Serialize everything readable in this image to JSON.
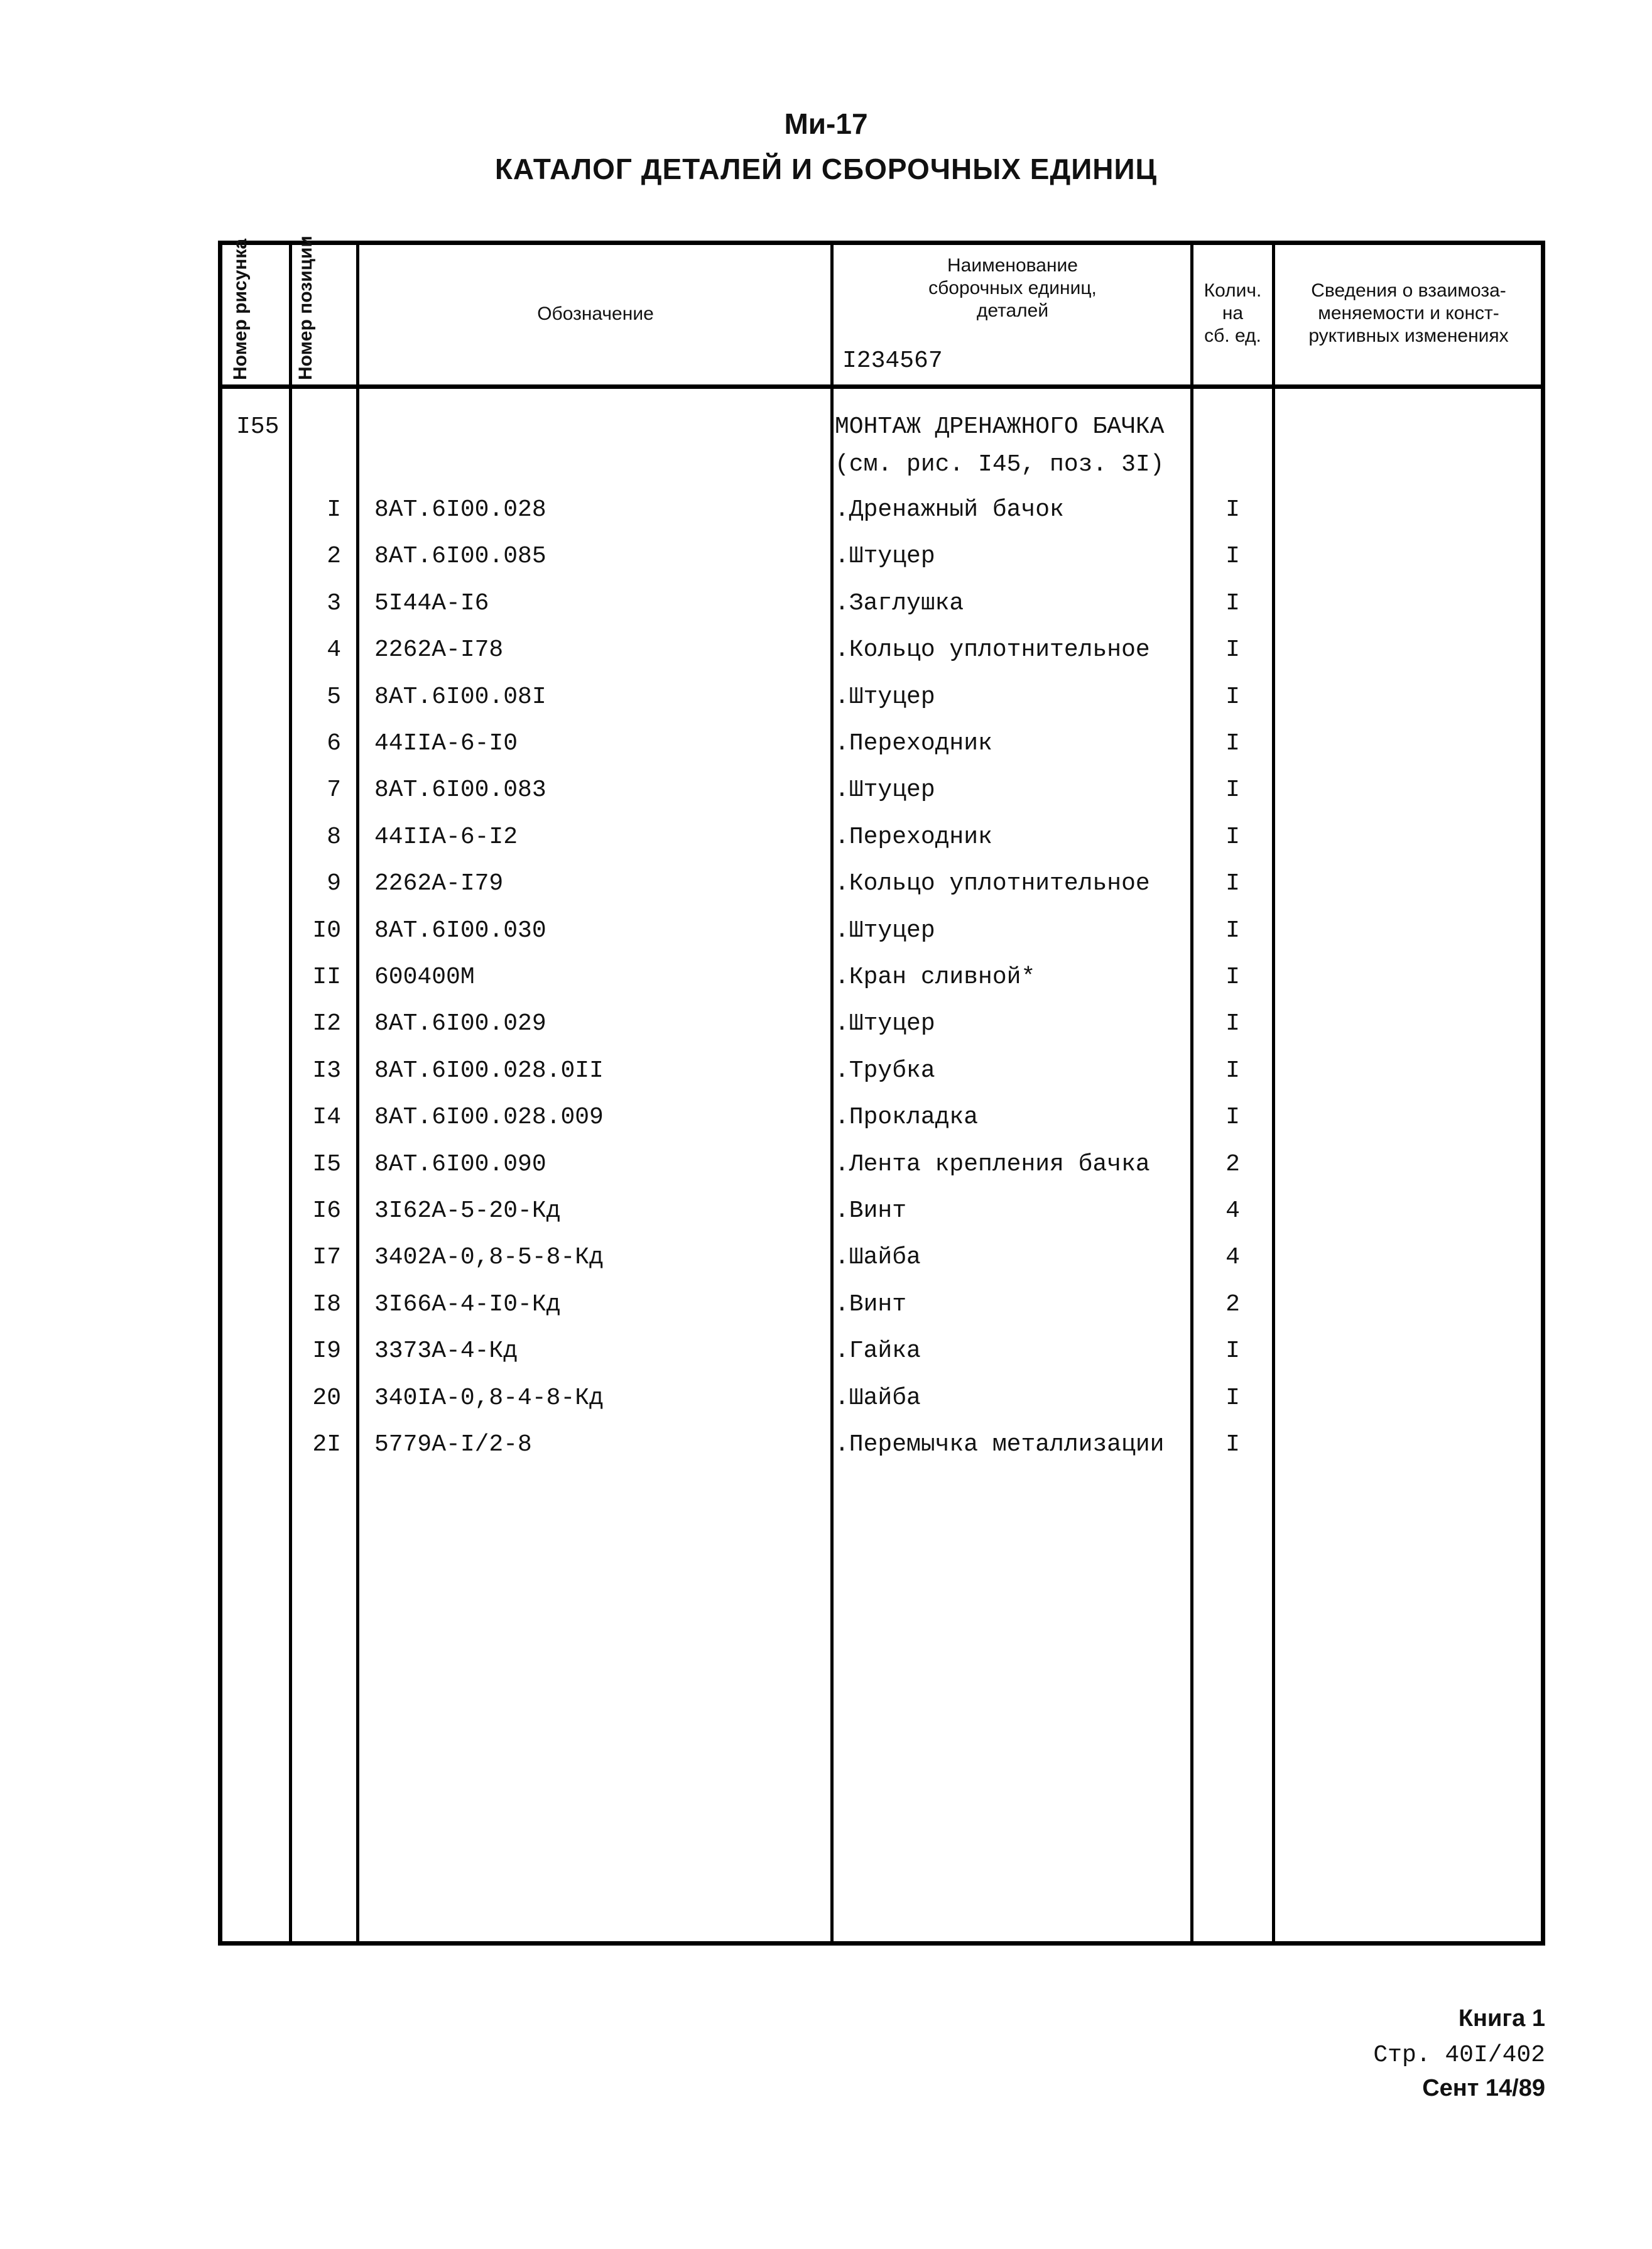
{
  "header": {
    "model": "Ми-17",
    "title": "КАТАЛОГ ДЕТАЛЕЙ И СБОРОЧНЫХ ЕДИНИЦ"
  },
  "table": {
    "columns": {
      "figure_number": "Номер рисунка",
      "position_number": "Номер позиции",
      "designation": "Обозначение",
      "name_lines": [
        "Наименование",
        "сборочных единиц,",
        "деталей"
      ],
      "name_code": "I234567",
      "qty_lines": [
        "Колич.",
        "на",
        "сб. ед."
      ],
      "info_lines": [
        "Сведения о взаимоза-",
        "меняемости и конст-",
        "руктивных изменениях"
      ]
    },
    "group": {
      "figure": "I55",
      "title_line1": "МОНТАЖ ДРЕНАЖНОГО БАЧКА",
      "title_line2": "(см. рис. I45, поз. 3I)"
    },
    "rows": [
      {
        "pos": "I",
        "designation": "8AT.6I00.028",
        "name": ".Дренажный бачок",
        "qty": "I"
      },
      {
        "pos": "2",
        "designation": "8AT.6I00.085",
        "name": ".Штуцер",
        "qty": "I"
      },
      {
        "pos": "3",
        "designation": "5I44A-I6",
        "name": ".Заглушка",
        "qty": "I"
      },
      {
        "pos": "4",
        "designation": "2262A-I78",
        "name": ".Кольцо уплотнительное",
        "qty": "I"
      },
      {
        "pos": "5",
        "designation": "8AT.6I00.08I",
        "name": ".Штуцер",
        "qty": "I"
      },
      {
        "pos": "6",
        "designation": "44IIA-6-I0",
        "name": ".Переходник",
        "qty": "I"
      },
      {
        "pos": "7",
        "designation": "8AT.6I00.083",
        "name": ".Штуцер",
        "qty": "I"
      },
      {
        "pos": "8",
        "designation": "44IIA-6-I2",
        "name": ".Переходник",
        "qty": "I"
      },
      {
        "pos": "9",
        "designation": "2262A-I79",
        "name": ".Кольцо уплотнительное",
        "qty": "I"
      },
      {
        "pos": "I0",
        "designation": "8AT.6I00.030",
        "name": ".Штуцер",
        "qty": "I"
      },
      {
        "pos": "II",
        "designation": "600400M",
        "name": ".Кран сливной*",
        "qty": "I"
      },
      {
        "pos": "I2",
        "designation": "8AT.6I00.029",
        "name": ".Штуцер",
        "qty": "I"
      },
      {
        "pos": "I3",
        "designation": "8AT.6I00.028.0II",
        "name": ".Трубка",
        "qty": "I"
      },
      {
        "pos": "I4",
        "designation": "8AT.6I00.028.009",
        "name": ".Прокладка",
        "qty": "I"
      },
      {
        "pos": "I5",
        "designation": "8AT.6I00.090",
        "name": ".Лента крепления бачка",
        "qty": "2"
      },
      {
        "pos": "I6",
        "designation": "3I62A-5-20-Кд",
        "name": ".Винт",
        "qty": "4"
      },
      {
        "pos": "I7",
        "designation": "3402A-0,8-5-8-Кд",
        "name": ".Шайба",
        "qty": "4"
      },
      {
        "pos": "I8",
        "designation": "3I66A-4-I0-Кд",
        "name": ".Винт",
        "qty": "2"
      },
      {
        "pos": "I9",
        "designation": "3373A-4-Кд",
        "name": ".Гайка",
        "qty": "I"
      },
      {
        "pos": "20",
        "designation": "340IA-0,8-4-8-Кд",
        "name": ".Шайба",
        "qty": "I"
      },
      {
        "pos": "2I",
        "designation": "5779A-I/2-8",
        "name": ".Перемычка металлизации",
        "qty": "I"
      }
    ]
  },
  "footer": {
    "book": "Книга 1",
    "page": "Стр. 40I/402",
    "date": "Сент 14/89"
  }
}
